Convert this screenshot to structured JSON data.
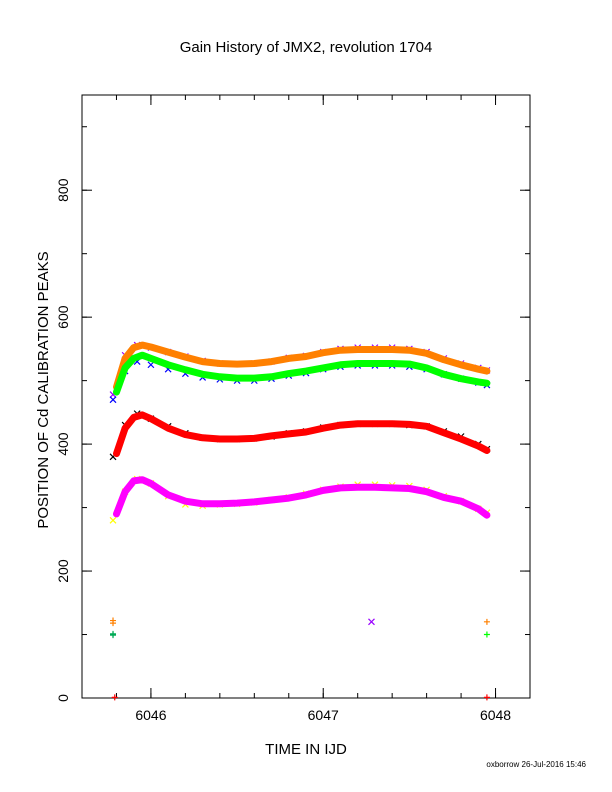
{
  "chart_data": {
    "type": "scatter",
    "title": "Gain History of JMX2, revolution 1704",
    "xlabel": "TIME IN IJD",
    "ylabel": "POSITION OF Cd CALIBRATION PEAKS",
    "xlim": [
      6045.6,
      6048.2
    ],
    "ylim": [
      0,
      950
    ],
    "xticks": [
      6046,
      6047,
      6048
    ],
    "xtick_labels": [
      "6046",
      "6047",
      "6048"
    ],
    "yticks": [
      0,
      200,
      400,
      600,
      800
    ],
    "ytick_labels": [
      "0",
      "200",
      "400",
      "600",
      "800"
    ],
    "x_minor_step": 0.2,
    "y_minor_step": 100,
    "grid": false,
    "legend": "none",
    "series": [
      {
        "color": "#9900ff",
        "marker": "x",
        "x": [
          6045.78,
          6045.85,
          6045.92,
          6046.0,
          6046.1,
          6046.2,
          6046.3,
          6046.4,
          6046.5,
          6046.6,
          6046.7,
          6046.8,
          6046.9,
          6047.0,
          6047.1,
          6047.2,
          6047.3,
          6047.4,
          6047.5,
          6047.6,
          6047.7,
          6047.8,
          6047.9,
          6047.95
        ],
        "y": [
          478,
          540,
          556,
          552,
          545,
          538,
          531,
          527,
          526,
          527,
          530,
          536,
          539,
          545,
          550,
          552,
          552,
          552,
          550,
          545,
          535,
          527,
          520,
          516
        ]
      },
      {
        "color": "#0000ff",
        "marker": "x",
        "x": [
          6045.78,
          6045.85,
          6045.92,
          6046.0,
          6046.1,
          6046.2,
          6046.3,
          6046.4,
          6046.5,
          6046.6,
          6046.7,
          6046.8,
          6046.9,
          6047.0,
          6047.1,
          6047.2,
          6047.3,
          6047.4,
          6047.5,
          6047.6,
          6047.7,
          6047.8,
          6047.9,
          6047.95
        ],
        "y": [
          470,
          515,
          530,
          525,
          518,
          511,
          505,
          502,
          500,
          500,
          503,
          508,
          512,
          518,
          522,
          524,
          524,
          524,
          522,
          518,
          510,
          503,
          497,
          493
        ]
      },
      {
        "color": "#000000",
        "marker": "x",
        "x": [
          6045.78,
          6045.85,
          6045.92,
          6046.0,
          6046.1,
          6046.2,
          6046.3,
          6046.4,
          6046.5,
          6046.6,
          6046.7,
          6046.8,
          6046.9,
          6047.0,
          6047.1,
          6047.2,
          6047.3,
          6047.4,
          6047.5,
          6047.6,
          6047.7,
          6047.8,
          6047.9,
          6047.95
        ],
        "y": [
          380,
          430,
          448,
          440,
          428,
          417,
          410,
          408,
          408,
          409,
          412,
          417,
          420,
          426,
          430,
          432,
          432,
          432,
          430,
          428,
          420,
          412,
          400,
          392
        ]
      },
      {
        "color": "#ffff00",
        "marker": "x",
        "x": [
          6045.78,
          6045.85,
          6045.92,
          6046.0,
          6046.1,
          6046.2,
          6046.3,
          6046.4,
          6046.5,
          6046.6,
          6046.7,
          6046.8,
          6046.9,
          6047.0,
          6047.1,
          6047.2,
          6047.3,
          6047.4,
          6047.5,
          6047.6,
          6047.7,
          6047.8,
          6047.9,
          6047.95
        ],
        "y": [
          280,
          325,
          345,
          338,
          318,
          305,
          303,
          305,
          306,
          308,
          312,
          316,
          322,
          328,
          333,
          336,
          336,
          335,
          334,
          328,
          318,
          310,
          298,
          292
        ]
      },
      {
        "color": "#ff8000",
        "marker": "line",
        "x": [
          6045.8,
          6045.85,
          6045.9,
          6045.95,
          6046.0,
          6046.1,
          6046.2,
          6046.3,
          6046.4,
          6046.5,
          6046.6,
          6046.7,
          6046.8,
          6046.9,
          6047.0,
          6047.1,
          6047.2,
          6047.3,
          6047.4,
          6047.5,
          6047.6,
          6047.7,
          6047.8,
          6047.9,
          6047.95
        ],
        "y": [
          490,
          535,
          552,
          556,
          553,
          545,
          537,
          530,
          527,
          526,
          527,
          530,
          535,
          538,
          544,
          548,
          549,
          549,
          549,
          548,
          543,
          533,
          525,
          518,
          515
        ]
      },
      {
        "color": "#00ff00",
        "marker": "line",
        "x": [
          6045.8,
          6045.85,
          6045.9,
          6045.95,
          6046.0,
          6046.1,
          6046.2,
          6046.3,
          6046.4,
          6046.5,
          6046.6,
          6046.7,
          6046.8,
          6046.9,
          6047.0,
          6047.1,
          6047.2,
          6047.3,
          6047.4,
          6047.5,
          6047.6,
          6047.7,
          6047.8,
          6047.9,
          6047.95
        ],
        "y": [
          482,
          520,
          535,
          540,
          535,
          525,
          517,
          510,
          506,
          504,
          504,
          506,
          511,
          515,
          520,
          525,
          527,
          527,
          527,
          526,
          520,
          510,
          503,
          498,
          496
        ]
      },
      {
        "color": "#ff0000",
        "marker": "line",
        "x": [
          6045.8,
          6045.85,
          6045.9,
          6045.95,
          6046.0,
          6046.1,
          6046.2,
          6046.3,
          6046.4,
          6046.5,
          6046.6,
          6046.7,
          6046.8,
          6046.9,
          6047.0,
          6047.1,
          6047.2,
          6047.3,
          6047.4,
          6047.5,
          6047.6,
          6047.7,
          6047.8,
          6047.9,
          6047.95
        ],
        "y": [
          385,
          425,
          442,
          446,
          440,
          425,
          415,
          410,
          408,
          408,
          409,
          413,
          416,
          419,
          425,
          430,
          432,
          432,
          432,
          431,
          428,
          418,
          408,
          397,
          390
        ]
      },
      {
        "color": "#ff00ff",
        "marker": "line",
        "x": [
          6045.8,
          6045.85,
          6045.9,
          6045.95,
          6046.0,
          6046.1,
          6046.2,
          6046.3,
          6046.4,
          6046.5,
          6046.6,
          6046.7,
          6046.8,
          6046.9,
          6047.0,
          6047.1,
          6047.2,
          6047.3,
          6047.4,
          6047.5,
          6047.6,
          6047.7,
          6047.8,
          6047.9,
          6047.95
        ],
        "y": [
          290,
          325,
          342,
          344,
          338,
          320,
          310,
          306,
          306,
          307,
          309,
          312,
          315,
          320,
          327,
          331,
          332,
          332,
          331,
          330,
          325,
          316,
          310,
          298,
          288
        ]
      },
      {
        "color": "#ff8000",
        "marker": "plus",
        "x": [
          6045.78,
          6045.78,
          6047.95
        ],
        "y": [
          122,
          118,
          120
        ]
      },
      {
        "color": "#00aa55",
        "marker": "plus",
        "x": [
          6045.78,
          6045.78
        ],
        "y": [
          101,
          99
        ]
      },
      {
        "color": "#00ff00",
        "marker": "plus",
        "x": [
          6047.95
        ],
        "y": [
          100
        ]
      },
      {
        "color": "#9900ff",
        "marker": "x",
        "x": [
          6047.28
        ],
        "y": [
          120
        ]
      },
      {
        "color": "#ff0000",
        "marker": "plus",
        "x": [
          6045.79,
          6047.95
        ],
        "y": [
          1,
          1
        ]
      }
    ]
  },
  "footer": "oxborrow 26-Jul-2016 15:46"
}
